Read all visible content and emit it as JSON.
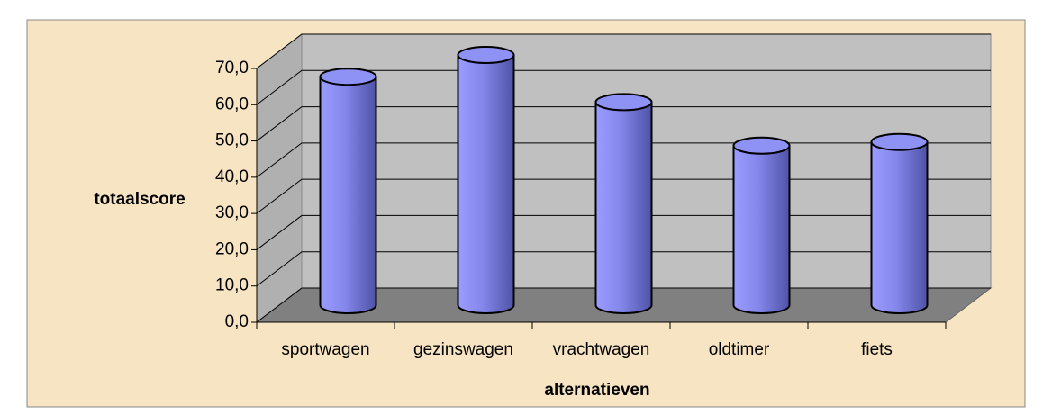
{
  "chart_data": {
    "type": "bar",
    "style": "3d-cylinder",
    "x_label": "alternatieven",
    "y_label": "totaalscore",
    "categories": [
      "sportwagen",
      "gezinswagen",
      "vrachtwagen",
      "oldtimer",
      "fiets"
    ],
    "values": [
      63,
      69,
      56,
      44,
      45
    ],
    "color": "#8c8cf0",
    "ylim": [
      0,
      70
    ],
    "yticks": [
      {
        "value": 0,
        "label": "0,0"
      },
      {
        "value": 10,
        "label": "10,0"
      },
      {
        "value": 20,
        "label": "20,0"
      },
      {
        "value": 30,
        "label": "30,0"
      },
      {
        "value": 40,
        "label": "40,0"
      },
      {
        "value": 50,
        "label": "50,0"
      },
      {
        "value": 60,
        "label": "60,0"
      },
      {
        "value": 70,
        "label": "70,0"
      }
    ],
    "grid": true
  }
}
